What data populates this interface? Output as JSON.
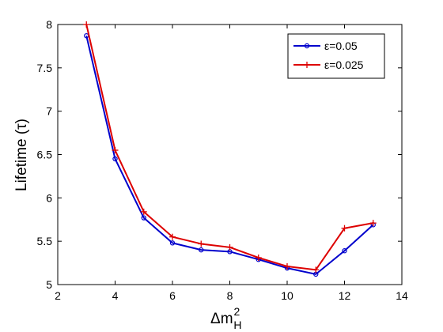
{
  "chart_data": {
    "type": "line",
    "title": "",
    "xlabel": "Δm",
    "xlabel_sup": "2",
    "xlabel_sub": "H",
    "ylabel": "Lifetime (τ)",
    "xlim": [
      2,
      14
    ],
    "ylim": [
      5,
      8
    ],
    "xticks": [
      2,
      4,
      6,
      8,
      10,
      12,
      14
    ],
    "yticks": [
      5,
      5.5,
      6,
      6.5,
      7,
      7.5,
      8
    ],
    "ytick_labels": [
      "5",
      "5.5",
      "6",
      "6.5",
      "7",
      "7.5",
      "8"
    ],
    "grid": false,
    "legend_position": "top-right",
    "series": [
      {
        "name": "ε=0.05",
        "color": "#0000cc",
        "marker": "circle",
        "x": [
          3,
          4,
          5,
          6,
          7,
          8,
          9,
          10,
          11,
          12,
          13
        ],
        "y": [
          7.87,
          6.45,
          5.77,
          5.48,
          5.4,
          5.38,
          5.29,
          5.19,
          5.12,
          5.39,
          5.69
        ]
      },
      {
        "name": "ε=0.025",
        "color": "#dd0000",
        "marker": "plus",
        "x": [
          3,
          4,
          5,
          6,
          7,
          8,
          9,
          10,
          11,
          12,
          13
        ],
        "y": [
          8.0,
          6.55,
          5.84,
          5.55,
          5.47,
          5.43,
          5.31,
          5.21,
          5.17,
          5.65,
          5.71
        ]
      }
    ]
  }
}
